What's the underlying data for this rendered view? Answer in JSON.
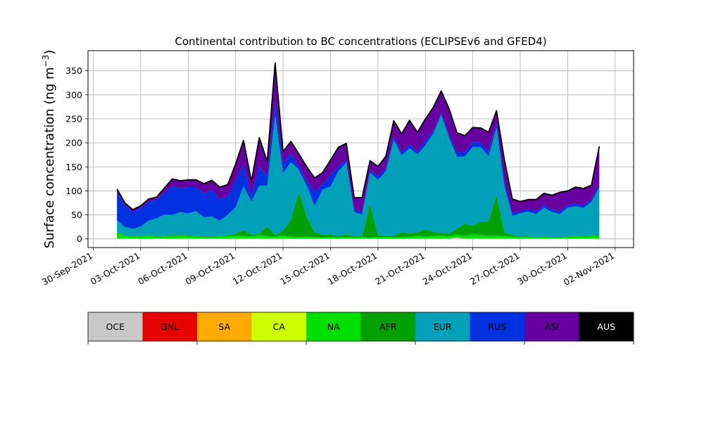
{
  "chart_data": {
    "type": "area",
    "stacked": true,
    "title": "Continental contribution to BC concentrations (ECLIPSEv6 and GFED4)",
    "ylabel": "Surface concentration (ng m⁻³)",
    "ylabel_main": "Surface concentration (ng m",
    "ylabel_exp": "−3",
    "ylabel_close": ")",
    "xlabel": "",
    "xlim": [
      "2021-09-29T16:00",
      "2021-11-03T04:00"
    ],
    "ylim": [
      -18,
      392
    ],
    "grid": true,
    "x_ticks": [
      "2021-09-30",
      "2021-10-03",
      "2021-10-06",
      "2021-10-09",
      "2021-10-12",
      "2021-10-15",
      "2021-10-18",
      "2021-10-21",
      "2021-10-24",
      "2021-10-27",
      "2021-10-30",
      "2021-11-02"
    ],
    "x_tick_labels": [
      "30-Sep-2021",
      "03-Oct-2021",
      "06-Oct-2021",
      "09-Oct-2021",
      "12-Oct-2021",
      "15-Oct-2021",
      "18-Oct-2021",
      "21-Oct-2021",
      "24-Oct-2021",
      "27-Oct-2021",
      "30-Oct-2021",
      "02-Nov-2021"
    ],
    "y_ticks": [
      0,
      50,
      100,
      150,
      200,
      250,
      300,
      350
    ],
    "y_tick_labels": [
      "0",
      "50",
      "100",
      "150",
      "200",
      "250",
      "300",
      "350"
    ],
    "x": [
      "2021-10-01T12:00",
      "2021-10-02T00:00",
      "2021-10-02T12:00",
      "2021-10-03T00:00",
      "2021-10-03T12:00",
      "2021-10-04T00:00",
      "2021-10-04T12:00",
      "2021-10-05T00:00",
      "2021-10-05T12:00",
      "2021-10-06T00:00",
      "2021-10-06T12:00",
      "2021-10-07T00:00",
      "2021-10-07T12:00",
      "2021-10-08T00:00",
      "2021-10-08T12:00",
      "2021-10-09T00:00",
      "2021-10-09T12:00",
      "2021-10-10T00:00",
      "2021-10-10T12:00",
      "2021-10-11T00:00",
      "2021-10-11T12:00",
      "2021-10-12T00:00",
      "2021-10-12T12:00",
      "2021-10-13T00:00",
      "2021-10-13T12:00",
      "2021-10-14T00:00",
      "2021-10-14T12:00",
      "2021-10-15T00:00",
      "2021-10-15T12:00",
      "2021-10-16T00:00",
      "2021-10-16T12:00",
      "2021-10-17T00:00",
      "2021-10-17T12:00",
      "2021-10-18T00:00",
      "2021-10-18T12:00",
      "2021-10-19T00:00",
      "2021-10-19T12:00",
      "2021-10-20T00:00",
      "2021-10-20T12:00",
      "2021-10-21T00:00",
      "2021-10-21T12:00",
      "2021-10-22T00:00",
      "2021-10-22T12:00",
      "2021-10-23T00:00",
      "2021-10-23T12:00",
      "2021-10-24T00:00",
      "2021-10-24T12:00",
      "2021-10-25T00:00",
      "2021-10-25T12:00",
      "2021-10-26T00:00",
      "2021-10-26T12:00",
      "2021-10-27T00:00",
      "2021-10-27T12:00",
      "2021-10-28T00:00",
      "2021-10-28T12:00",
      "2021-10-29T00:00",
      "2021-10-29T12:00",
      "2021-10-30T00:00",
      "2021-10-30T12:00",
      "2021-10-31T00:00",
      "2021-10-31T12:00",
      "2021-11-01T00:00"
    ],
    "series": [
      {
        "name": "OCE",
        "color": "#c8c8c8",
        "values": [
          1,
          1,
          1,
          1,
          1,
          1,
          1,
          1,
          1,
          1,
          1,
          1,
          1,
          1,
          1,
          1,
          1,
          1,
          1,
          1,
          1,
          1,
          1,
          1,
          1,
          1,
          1,
          1,
          1,
          1,
          1,
          1,
          1,
          1,
          1,
          1,
          1,
          1,
          1,
          1,
          1,
          1,
          1,
          3,
          1,
          1,
          1,
          1,
          1,
          1,
          1,
          1,
          1,
          1,
          1,
          1,
          1,
          1,
          1,
          1,
          1,
          1
        ]
      },
      {
        "name": "GNL",
        "color": "#e60000",
        "values": [
          0,
          0,
          0,
          0,
          0,
          0,
          0,
          0,
          0,
          0,
          0,
          0,
          0,
          0,
          0,
          0,
          0,
          0,
          0,
          0,
          0,
          0,
          0,
          0,
          0,
          0,
          0,
          0,
          0,
          0,
          0,
          0,
          0,
          0,
          0,
          0,
          0,
          0,
          0,
          0,
          0,
          0,
          0,
          0,
          0,
          0,
          0,
          0,
          0,
          0,
          0,
          0,
          0,
          0,
          0,
          0,
          0,
          0,
          0,
          0,
          0,
          0
        ]
      },
      {
        "name": "SA",
        "color": "#ffaa00",
        "values": [
          0,
          0,
          0,
          0,
          0,
          0,
          0,
          0,
          0,
          0,
          0,
          0,
          0,
          0,
          0,
          0,
          0,
          0,
          0,
          0,
          0,
          0,
          0,
          0,
          0,
          0,
          0,
          0,
          0,
          0,
          0,
          0,
          0,
          0,
          0,
          0,
          0,
          0,
          0,
          0,
          0,
          0,
          0,
          0,
          0,
          0,
          0,
          0,
          0,
          0,
          0,
          0,
          0,
          0,
          0,
          0,
          0,
          0,
          0,
          0,
          0,
          0
        ]
      },
      {
        "name": "CA",
        "color": "#ccff00",
        "values": [
          0,
          0,
          0,
          0,
          0,
          0,
          0,
          0,
          0,
          0,
          0,
          0,
          0,
          0,
          0,
          0,
          0,
          0,
          0,
          0,
          0,
          0,
          0,
          0,
          0,
          0,
          0,
          0,
          0,
          0,
          0,
          0,
          0,
          0,
          0,
          0,
          0,
          0,
          0,
          0,
          0,
          0,
          0,
          0,
          0,
          0,
          0,
          0,
          0,
          0,
          0,
          0,
          0,
          0,
          0,
          0,
          0,
          0,
          0,
          0,
          0,
          0
        ]
      },
      {
        "name": "NA",
        "color": "#00e000",
        "values": [
          12,
          5,
          4,
          4,
          6,
          3,
          4,
          5,
          6,
          5,
          4,
          3,
          3,
          4,
          5,
          6,
          5,
          4,
          8,
          5,
          4,
          6,
          4,
          3,
          4,
          3,
          2,
          3,
          2,
          3,
          2,
          3,
          2,
          3,
          3,
          3,
          3,
          4,
          5,
          4,
          5,
          6,
          5,
          6,
          6,
          8,
          7,
          6,
          6,
          5,
          4,
          3,
          3,
          2,
          3,
          2,
          2,
          3,
          4,
          4,
          5,
          6
        ]
      },
      {
        "name": "AFR",
        "color": "#00a000",
        "values": [
          1,
          1,
          1,
          1,
          1,
          1,
          1,
          2,
          1,
          2,
          1,
          1,
          1,
          1,
          2,
          4,
          12,
          3,
          2,
          20,
          3,
          10,
          35,
          95,
          40,
          10,
          5,
          5,
          3,
          5,
          3,
          2,
          70,
          4,
          2,
          2,
          10,
          6,
          8,
          15,
          8,
          6,
          5,
          12,
          25,
          18,
          28,
          30,
          85,
          8,
          3,
          1,
          1,
          1,
          1,
          1,
          1,
          1,
          1,
          2,
          1,
          1
        ]
      },
      {
        "name": "EUR",
        "color": "#00a0b8",
        "values": [
          25,
          18,
          15,
          20,
          30,
          38,
          45,
          42,
          48,
          45,
          52,
          40,
          42,
          32,
          42,
          55,
          92,
          70,
          100,
          85,
          250,
          120,
          120,
          45,
          65,
          55,
          95,
          100,
          135,
          150,
          50,
          45,
          65,
          115,
          135,
          200,
          160,
          178,
          162,
          175,
          205,
          245,
          200,
          150,
          140,
          165,
          155,
          135,
          140,
          95,
          40,
          48,
          52,
          48,
          60,
          52,
          48,
          60,
          62,
          58,
          70,
          100
        ]
      },
      {
        "name": "RUS",
        "color": "#0030e0",
        "values": [
          60,
          45,
          35,
          38,
          40,
          38,
          45,
          60,
          50,
          55,
          50,
          50,
          55,
          45,
          38,
          55,
          45,
          12,
          40,
          20,
          28,
          20,
          18,
          8,
          10,
          30,
          10,
          25,
          10,
          5,
          5,
          5,
          5,
          8,
          6,
          10,
          5,
          8,
          6,
          10,
          5,
          5,
          5,
          10,
          8,
          10,
          10,
          10,
          10,
          10,
          5,
          5,
          5,
          5,
          5,
          5,
          5,
          5,
          5,
          5,
          5,
          5
        ]
      },
      {
        "name": "ASI",
        "color": "#6600a0",
        "values": [
          5,
          5,
          5,
          5,
          5,
          6,
          10,
          15,
          15,
          15,
          15,
          20,
          20,
          25,
          25,
          35,
          50,
          30,
          60,
          30,
          80,
          25,
          25,
          25,
          30,
          28,
          25,
          30,
          40,
          35,
          25,
          30,
          20,
          20,
          25,
          30,
          40,
          50,
          40,
          45,
          50,
          45,
          55,
          40,
          35,
          30,
          30,
          40,
          25,
          45,
          30,
          20,
          20,
          25,
          25,
          30,
          40,
          30,
          35,
          35,
          30,
          80
        ]
      },
      {
        "name": "AUS",
        "color": "#000000",
        "values": [
          0,
          0,
          0,
          0,
          0,
          0,
          0,
          0,
          0,
          0,
          0,
          0,
          0,
          0,
          0,
          0,
          0,
          0,
          0,
          0,
          0,
          0,
          0,
          0,
          0,
          0,
          0,
          0,
          0,
          0,
          0,
          0,
          0,
          0,
          0,
          0,
          0,
          0,
          0,
          0,
          0,
          0,
          0,
          0,
          0,
          0,
          0,
          0,
          0,
          0,
          0,
          0,
          0,
          0,
          0,
          0,
          0,
          0,
          0,
          0,
          0,
          0
        ]
      }
    ]
  }
}
